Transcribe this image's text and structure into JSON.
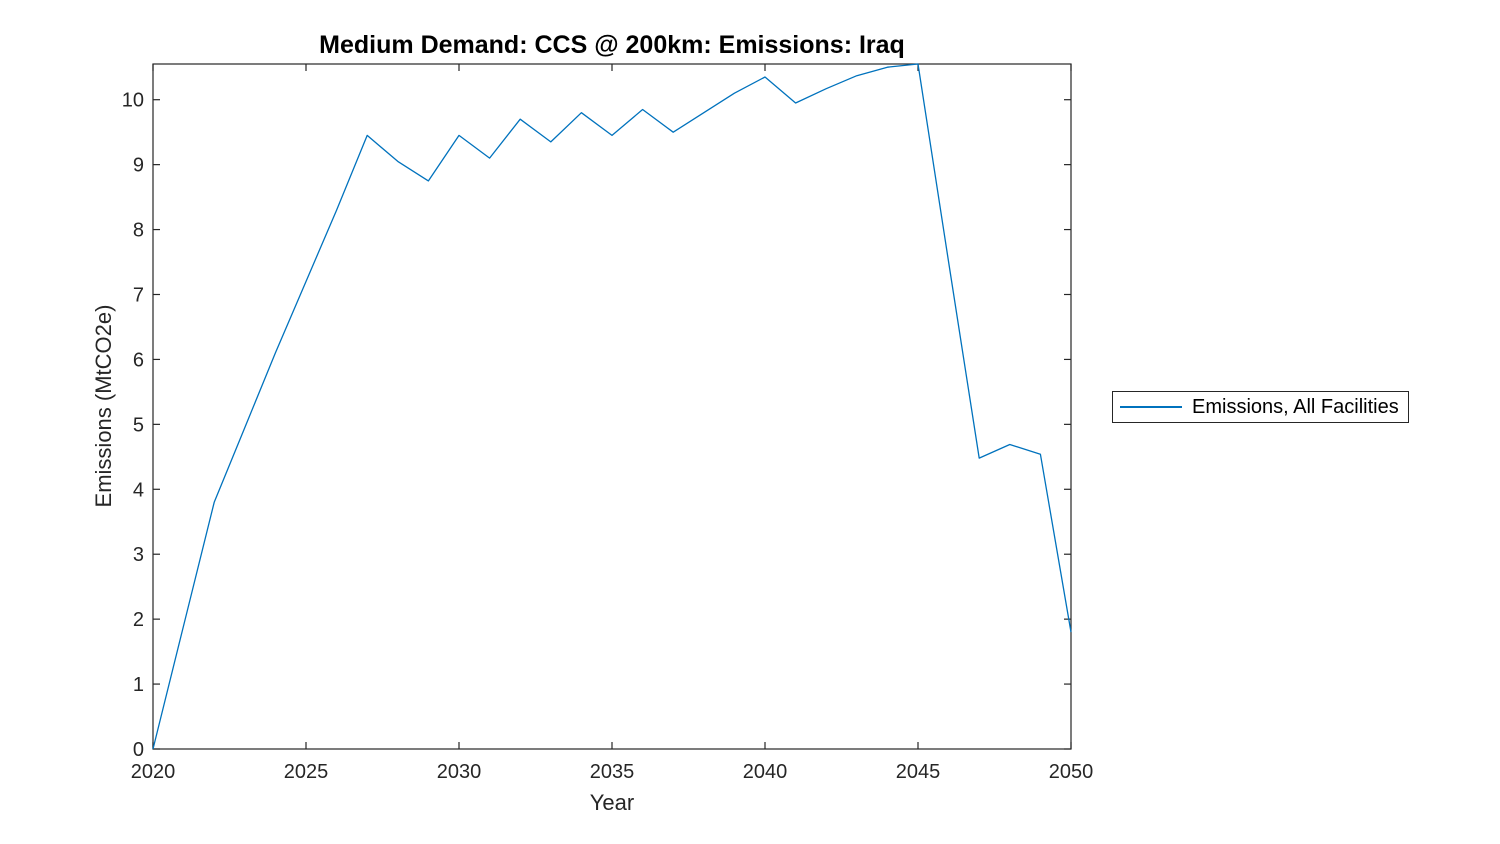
{
  "colors": {
    "line": "#0072BD",
    "axis": "#262626",
    "title_text": "#000000",
    "background": "#ffffff"
  },
  "legend": {
    "label": "Emissions, All Facilities"
  },
  "chart_data": {
    "type": "line",
    "title": "Medium Demand: CCS @ 200km: Emissions: Iraq",
    "xlabel": "Year",
    "ylabel": "Emissions (MtCO2e)",
    "xlim": [
      2020,
      2050
    ],
    "ylim": [
      0,
      10.55
    ],
    "x_ticks": [
      2020,
      2025,
      2030,
      2035,
      2040,
      2045,
      2050
    ],
    "y_ticks": [
      0,
      1,
      2,
      3,
      4,
      5,
      6,
      7,
      8,
      9,
      10
    ],
    "grid": false,
    "legend_position": "outside-right",
    "x": [
      2020,
      2021,
      2022,
      2023,
      2024,
      2025,
      2026,
      2027,
      2028,
      2029,
      2030,
      2031,
      2032,
      2033,
      2034,
      2035,
      2036,
      2037,
      2038,
      2039,
      2040,
      2041,
      2042,
      2043,
      2044,
      2045,
      2046,
      2047,
      2048,
      2049,
      2050
    ],
    "series": [
      {
        "name": "Emissions, All Facilities",
        "color": "#0072BD",
        "values": [
          0,
          1.9,
          3.8,
          4.95,
          6.1,
          7.2,
          8.3,
          9.45,
          9.05,
          8.75,
          9.45,
          9.1,
          9.7,
          9.35,
          9.8,
          9.45,
          9.85,
          9.5,
          9.8,
          10.1,
          10.35,
          9.95,
          10.17,
          10.37,
          10.5,
          10.55,
          7.5,
          4.48,
          4.69,
          4.54,
          1.8
        ]
      }
    ]
  }
}
